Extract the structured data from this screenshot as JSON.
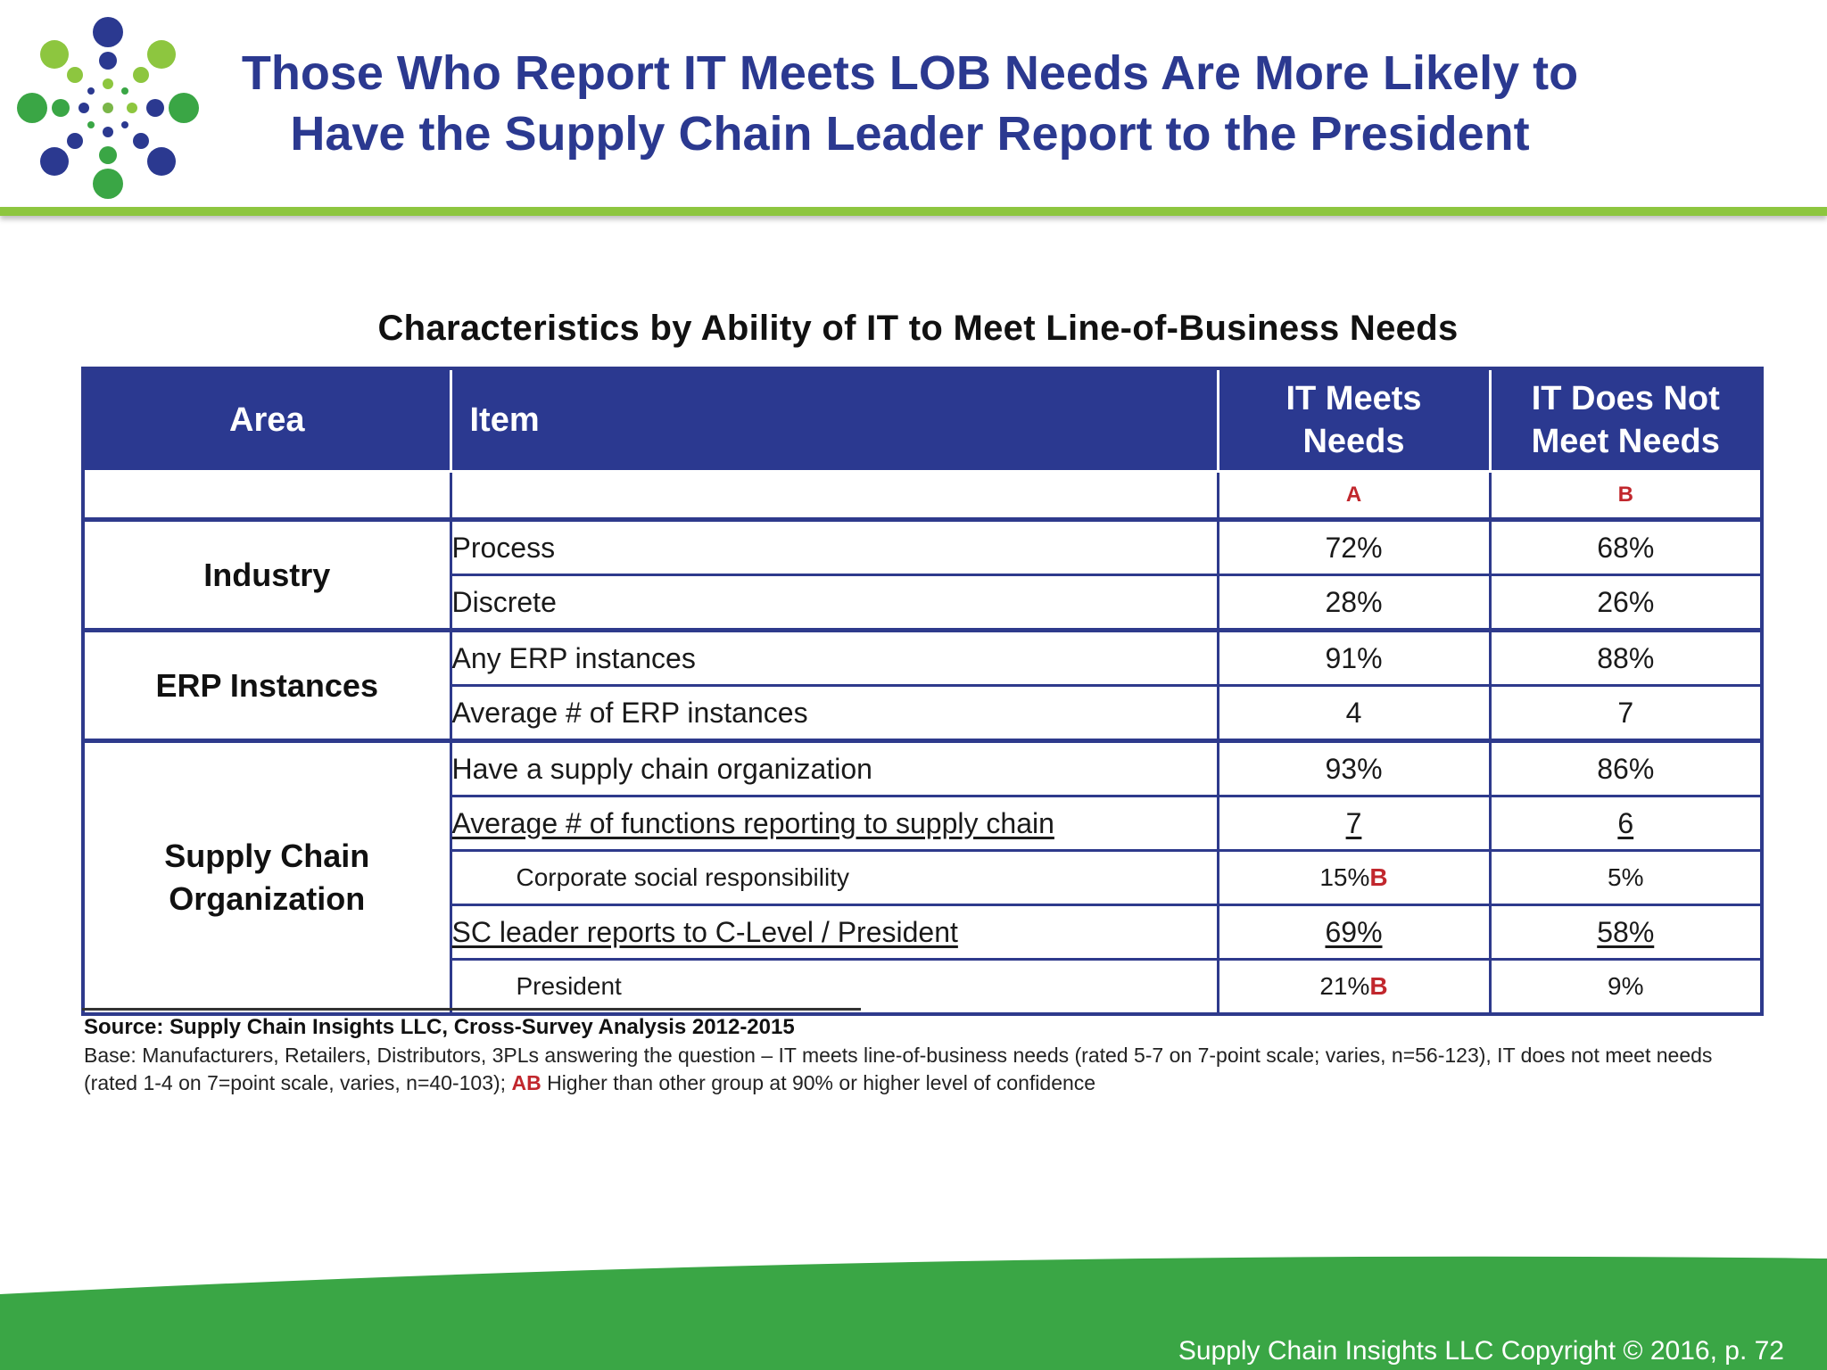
{
  "slide": {
    "title_line1": "Those Who Report IT Meets LOB Needs Are More Likely to",
    "title_line2": "Have the Supply Chain Leader Report to the President",
    "logo_icon": "dots-circle-logo-icon",
    "colors": {
      "title": "#2b3990",
      "accent_green": "#8dc63f",
      "footer_green": "#3aa645",
      "table_header": "#2b3990",
      "significance": "#c1272d"
    }
  },
  "table": {
    "title": "Characteristics by Ability of IT to Meet Line-of-Business Needs",
    "headers": {
      "area": "Area",
      "item": "Item",
      "a_line1": "IT Meets",
      "a_line2": "Needs",
      "b_line1": "IT Does Not",
      "b_line2": "Meet Needs"
    },
    "group_letters": {
      "a": "A",
      "b": "B"
    },
    "groups": [
      {
        "area": "Industry",
        "rows": [
          {
            "item": "Process",
            "a": "72%",
            "b": "68%"
          },
          {
            "item": "Discrete",
            "a": "28%",
            "b": "26%"
          }
        ]
      },
      {
        "area": "ERP Instances",
        "rows": [
          {
            "item": "Any ERP instances",
            "a": "91%",
            "b": "88%"
          },
          {
            "item": "Average # of ERP instances",
            "a": "4",
            "b": "7"
          }
        ]
      },
      {
        "area_line1": "Supply Chain",
        "area_line2": "Organization",
        "rows": [
          {
            "item": "Have a supply chain organization",
            "a": "93%",
            "b": "86%"
          },
          {
            "item": "Average # of functions reporting to supply chain",
            "a": "7",
            "b": "6"
          },
          {
            "item": "Corporate social responsibility",
            "a": "15%",
            "a_mark": "B",
            "b": "5%"
          },
          {
            "item": "SC leader reports to C-Level / President",
            "a": "69%",
            "b": "58%"
          },
          {
            "item": "President",
            "a": "21%",
            "a_mark": "B",
            "b": "9%"
          }
        ]
      }
    ]
  },
  "notes": {
    "source": "Source:  Supply Chain Insights LLC, Cross-Survey Analysis 2012-2015",
    "base_part1": "Base:  Manufacturers, Retailers, Distributors, 3PLs answering the question – IT meets line-of-business needs (rated 5-7 on 7-point scale; varies, n=56-123), IT does not meet needs (rated 1-4 on 7=point scale, varies, n=40-103); ",
    "base_mark": "AB",
    "base_part2": " Higher than other group at 90% or higher level of confidence"
  },
  "footer": {
    "copyright": "Supply Chain Insights LLC Copyright © 2016, p. 72"
  }
}
